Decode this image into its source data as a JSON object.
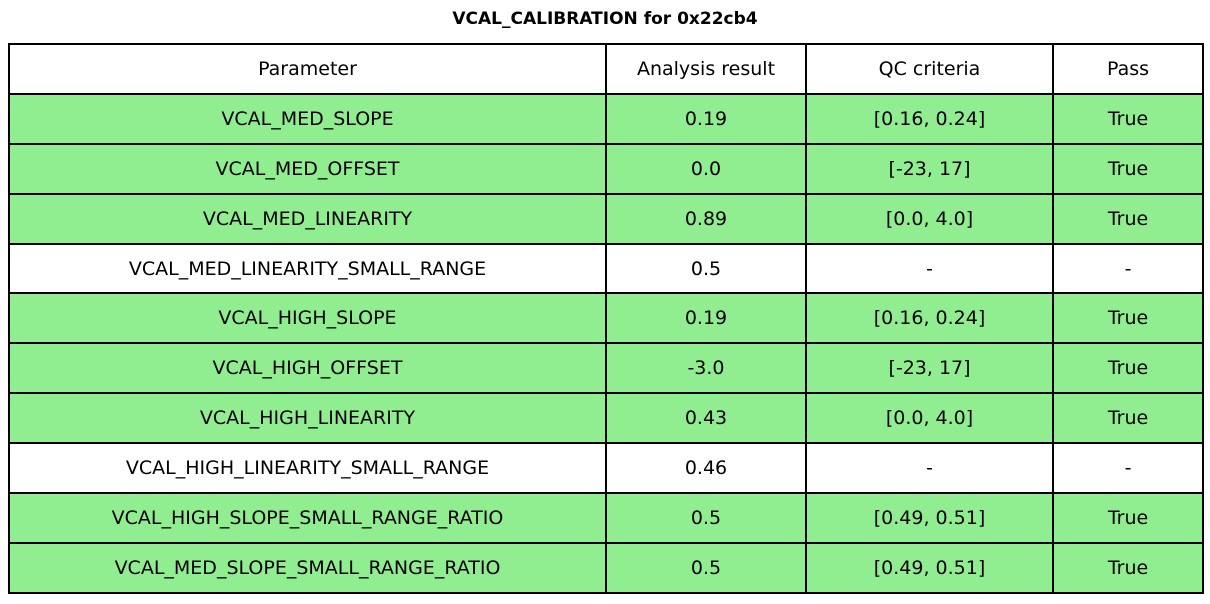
{
  "page": {
    "title": "VCAL_CALIBRATION for 0x22cb4"
  },
  "colors": {
    "pass_row_green": "#90EE90",
    "neutral_row_white": "#ffffff",
    "border_black": "#000000"
  },
  "table": {
    "columns": [
      "Parameter",
      "Analysis result",
      "QC criteria",
      "Pass"
    ],
    "rows": [
      {
        "parameter": "VCAL_MED_SLOPE",
        "analysis_result": "0.19",
        "qc_criteria": "[0.16, 0.24]",
        "pass": "True",
        "highlighted": true
      },
      {
        "parameter": "VCAL_MED_OFFSET",
        "analysis_result": "0.0",
        "qc_criteria": "[-23, 17]",
        "pass": "True",
        "highlighted": true
      },
      {
        "parameter": "VCAL_MED_LINEARITY",
        "analysis_result": "0.89",
        "qc_criteria": "[0.0, 4.0]",
        "pass": "True",
        "highlighted": true
      },
      {
        "parameter": "VCAL_MED_LINEARITY_SMALL_RANGE",
        "analysis_result": "0.5",
        "qc_criteria": "-",
        "pass": "-",
        "highlighted": false
      },
      {
        "parameter": "VCAL_HIGH_SLOPE",
        "analysis_result": "0.19",
        "qc_criteria": "[0.16, 0.24]",
        "pass": "True",
        "highlighted": true
      },
      {
        "parameter": "VCAL_HIGH_OFFSET",
        "analysis_result": "-3.0",
        "qc_criteria": "[-23, 17]",
        "pass": "True",
        "highlighted": true
      },
      {
        "parameter": "VCAL_HIGH_LINEARITY",
        "analysis_result": "0.43",
        "qc_criteria": "[0.0, 4.0]",
        "pass": "True",
        "highlighted": true
      },
      {
        "parameter": "VCAL_HIGH_LINEARITY_SMALL_RANGE",
        "analysis_result": "0.46",
        "qc_criteria": "-",
        "pass": "-",
        "highlighted": false
      },
      {
        "parameter": "VCAL_HIGH_SLOPE_SMALL_RANGE_RATIO",
        "analysis_result": "0.5",
        "qc_criteria": "[0.49, 0.51]",
        "pass": "True",
        "highlighted": true
      },
      {
        "parameter": "VCAL_MED_SLOPE_SMALL_RANGE_RATIO",
        "analysis_result": "0.5",
        "qc_criteria": "[0.49, 0.51]",
        "pass": "True",
        "highlighted": true
      }
    ]
  },
  "chart_data": {
    "type": "table",
    "title": "VCAL_CALIBRATION for 0x22cb4",
    "columns": [
      "Parameter",
      "Analysis result",
      "QC criteria",
      "Pass"
    ],
    "rows": [
      [
        "VCAL_MED_SLOPE",
        "0.19",
        "[0.16, 0.24]",
        "True"
      ],
      [
        "VCAL_MED_OFFSET",
        "0.0",
        "[-23, 17]",
        "True"
      ],
      [
        "VCAL_MED_LINEARITY",
        "0.89",
        "[0.0, 4.0]",
        "True"
      ],
      [
        "VCAL_MED_LINEARITY_SMALL_RANGE",
        "0.5",
        "-",
        "-"
      ],
      [
        "VCAL_HIGH_SLOPE",
        "0.19",
        "[0.16, 0.24]",
        "True"
      ],
      [
        "VCAL_HIGH_OFFSET",
        "-3.0",
        "[-23, 17]",
        "True"
      ],
      [
        "VCAL_HIGH_LINEARITY",
        "0.43",
        "[0.0, 4.0]",
        "True"
      ],
      [
        "VCAL_HIGH_LINEARITY_SMALL_RANGE",
        "0.46",
        "-",
        "-"
      ],
      [
        "VCAL_HIGH_SLOPE_SMALL_RANGE_RATIO",
        "0.5",
        "[0.49, 0.51]",
        "True"
      ],
      [
        "VCAL_MED_SLOPE_SMALL_RANGE_RATIO",
        "0.5",
        "[0.49, 0.51]",
        "True"
      ]
    ],
    "row_highlight_color": "#90EE90",
    "highlight_meaning": "QC pass rows shaded green; rows without QC criteria left white"
  }
}
